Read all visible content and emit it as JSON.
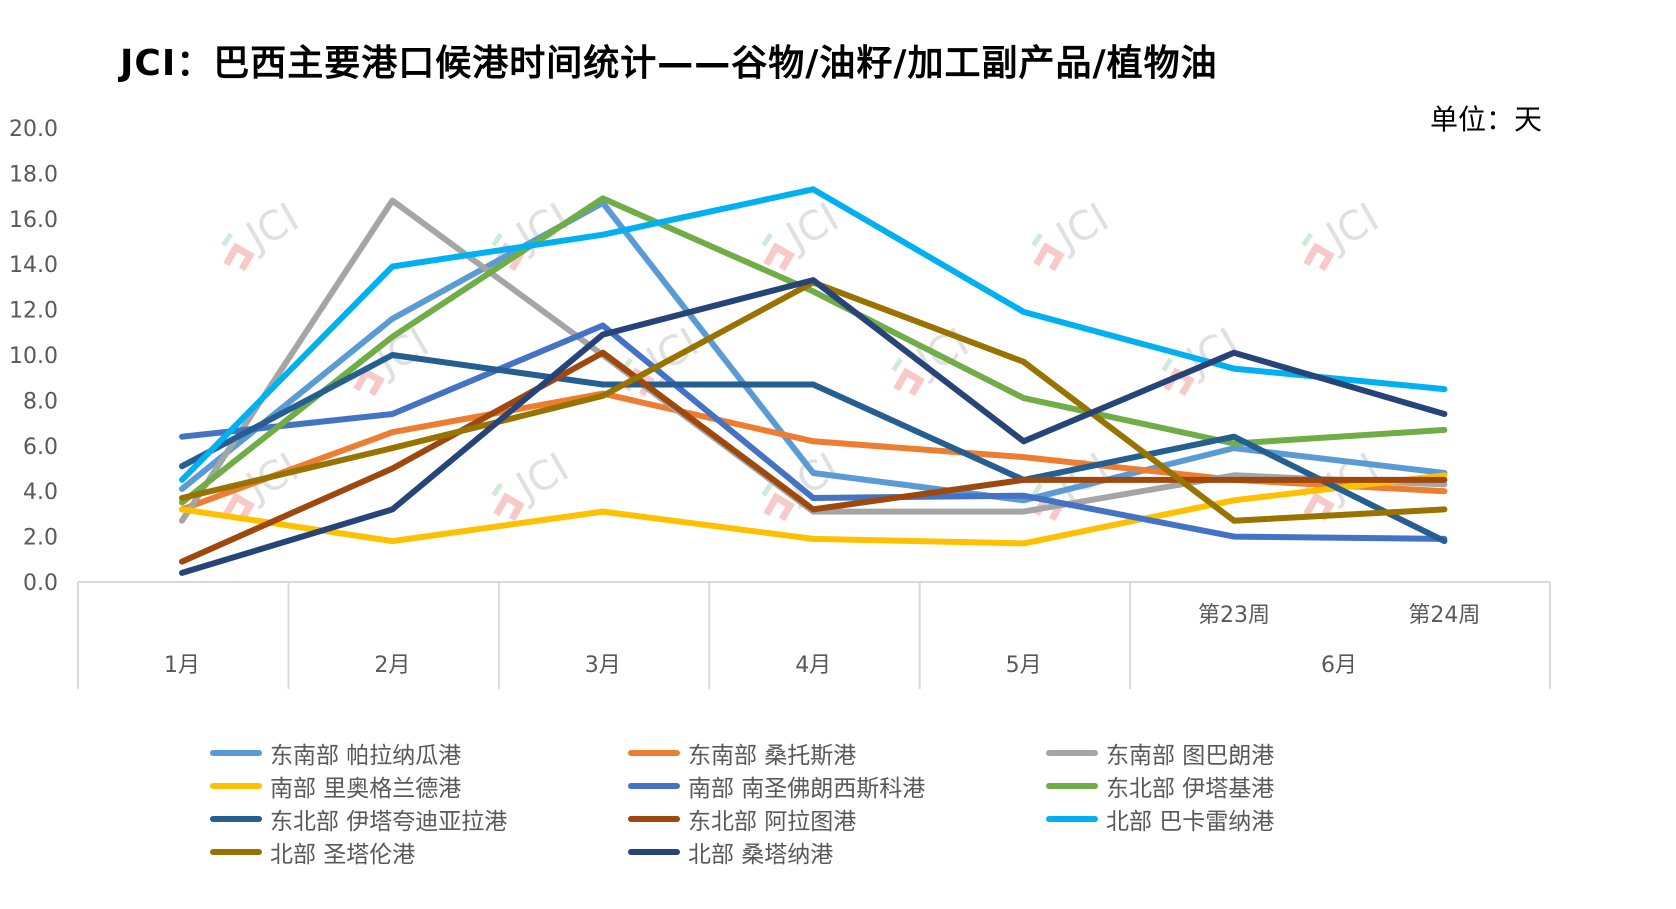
{
  "chart_data": {
    "type": "line",
    "title": "JCI：巴西主要港口候港时间统计——谷物/油籽/加工副产品/植物油",
    "unit": "单位：天",
    "ylim": [
      0,
      20
    ],
    "yticks": [
      "0.0",
      "2.0",
      "4.0",
      "6.0",
      "8.0",
      "10.0",
      "12.0",
      "14.0",
      "16.0",
      "18.0",
      "20.0"
    ],
    "ytick_values": [
      0,
      2,
      4,
      6,
      8,
      10,
      12,
      14,
      16,
      18,
      20
    ],
    "categories": [
      "1月",
      "2月",
      "3月",
      "4月",
      "5月",
      "第23周",
      "第24周"
    ],
    "group_labels": [
      "1月",
      "2月",
      "3月",
      "4月",
      "5月",
      "6月"
    ],
    "sub_labels": [
      "第23周",
      "第24周"
    ],
    "grid": false,
    "legend_position": "bottom",
    "series": [
      {
        "name": "东南部 帕拉纳瓜港",
        "color": "#5B9BD5",
        "values": [
          4.1,
          11.6,
          16.7,
          4.8,
          3.6,
          5.9,
          4.8
        ]
      },
      {
        "name": "东南部 桑托斯港",
        "color": "#ED7D31",
        "values": [
          3.2,
          6.6,
          8.3,
          6.2,
          5.5,
          4.5,
          4.0
        ]
      },
      {
        "name": "东南部 图巴朗港",
        "color": "#A5A5A5",
        "values": [
          2.7,
          16.8,
          10.0,
          3.1,
          3.1,
          4.7,
          4.3
        ]
      },
      {
        "name": "南部 里奥格兰德港",
        "color": "#FFC000",
        "values": [
          3.2,
          1.8,
          3.1,
          1.9,
          1.7,
          3.6,
          4.7
        ]
      },
      {
        "name": "南部 南圣佛朗西斯科港",
        "color": "#4472C4",
        "values": [
          6.4,
          7.4,
          11.3,
          3.7,
          3.8,
          2.0,
          1.9
        ]
      },
      {
        "name": "东北部 伊塔基港",
        "color": "#70AD47",
        "values": [
          3.5,
          10.8,
          16.9,
          12.8,
          8.1,
          6.1,
          6.7
        ]
      },
      {
        "name": "东北部 伊塔夸迪亚拉港",
        "color": "#255E91",
        "values": [
          5.1,
          10.0,
          8.7,
          8.7,
          4.5,
          6.4,
          1.8
        ]
      },
      {
        "name": "东北部 阿拉图港",
        "color": "#9E480E",
        "values": [
          0.9,
          5.0,
          10.1,
          3.2,
          4.5,
          4.5,
          4.5
        ]
      },
      {
        "name": "北部 巴卡雷纳港",
        "color": "#00B0F0",
        "values": [
          4.5,
          13.9,
          15.3,
          17.3,
          11.9,
          9.4,
          8.5
        ]
      },
      {
        "name": "北部 圣塔伦港",
        "color": "#997300",
        "values": [
          3.7,
          5.9,
          8.2,
          13.2,
          9.7,
          2.7,
          3.2
        ]
      },
      {
        "name": "北部 桑塔纳港",
        "color": "#264478",
        "values": [
          0.4,
          3.2,
          10.9,
          13.3,
          6.2,
          10.1,
          7.4
        ]
      }
    ],
    "watermark": "JCI"
  }
}
